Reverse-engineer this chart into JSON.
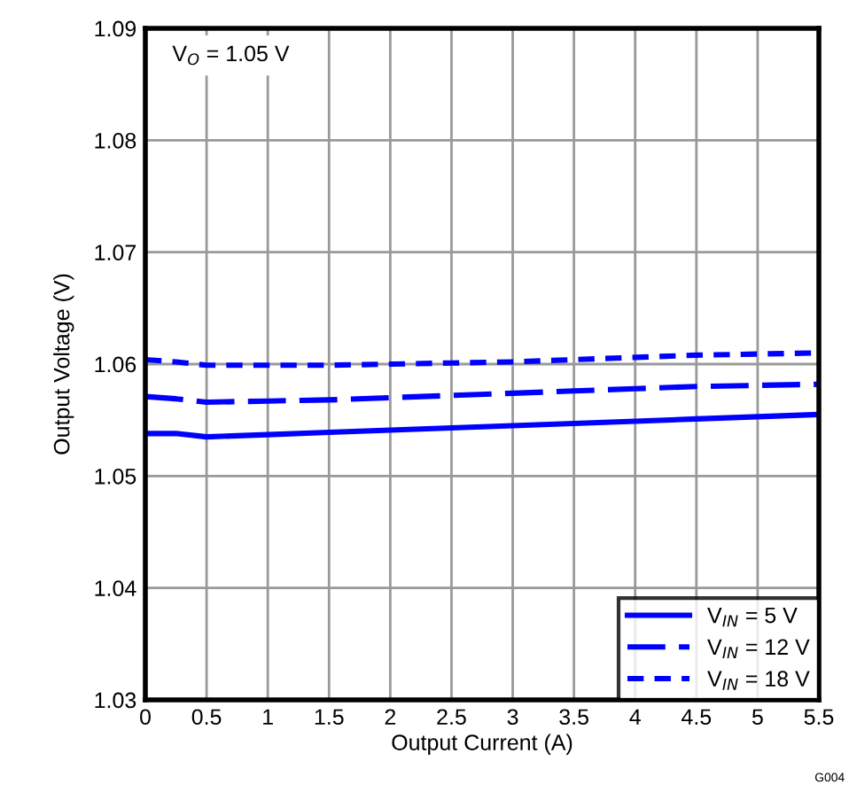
{
  "chart_data": {
    "type": "line",
    "xlabel": "Output Current (A)",
    "ylabel": "Output Voltage (V)",
    "annotations": [
      "V$_{O}$ = 1.05 V",
      "G004"
    ],
    "xlim": [
      0,
      5.5
    ],
    "xticks": [
      0,
      0.5,
      1,
      1.5,
      2,
      2.5,
      3,
      3.5,
      4,
      4.5,
      5,
      5.5
    ],
    "ylim": [
      1.03,
      1.09
    ],
    "yticks": [
      1.03,
      1.04,
      1.05,
      1.06,
      1.07,
      1.08,
      1.09
    ],
    "grid": true,
    "legend": "bottom right",
    "marker": "none",
    "x": [
      0,
      0.25,
      0.5,
      1,
      1.5,
      2,
      2.5,
      3,
      3.5,
      4,
      4.5,
      5,
      5.5
    ],
    "series": [
      {
        "name": "V$_{IN}$ = 5 V",
        "color": "#0000ff",
        "line_style": "solid",
        "values": [
          1.0538,
          1.0538,
          1.0535,
          1.0537,
          1.0539,
          1.0541,
          1.0543,
          1.0545,
          1.0547,
          1.0549,
          1.0551,
          1.0553,
          1.0555
        ]
      },
      {
        "name": "V$_{IN}$ = 12 V",
        "color": "#0000ff",
        "line_style": "dashed",
        "values": [
          1.0571,
          1.0569,
          1.0566,
          1.0567,
          1.0568,
          1.057,
          1.0572,
          1.0574,
          1.0576,
          1.0578,
          1.058,
          1.0581,
          1.0582
        ]
      },
      {
        "name": "V$_{IN}$ = 18 V",
        "color": "#0000ff",
        "line_style": "dotted",
        "values": [
          1.0604,
          1.0602,
          1.0599,
          1.0599,
          1.0599,
          1.06,
          1.0601,
          1.0602,
          1.0604,
          1.0606,
          1.0608,
          1.0609,
          1.061
        ]
      }
    ]
  }
}
